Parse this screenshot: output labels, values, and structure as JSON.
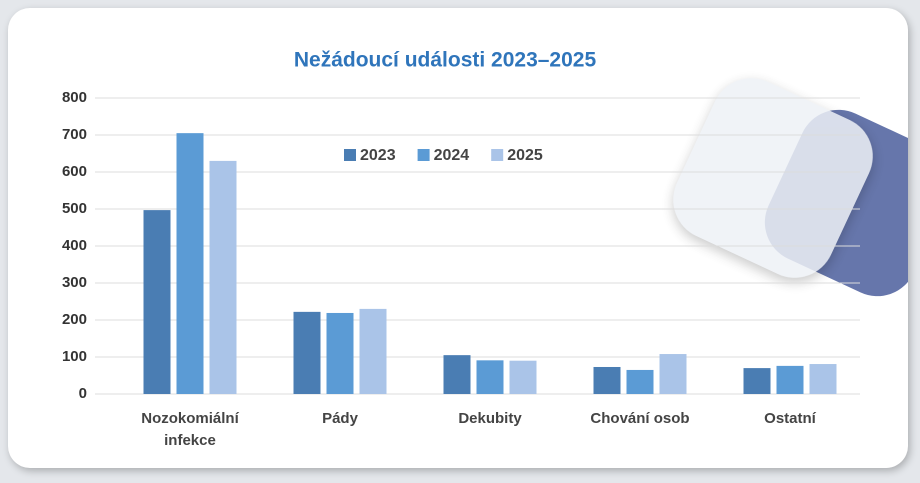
{
  "chart_data": {
    "type": "bar",
    "title": "Nežádoucí události 2023–2025",
    "categories": [
      "Nozokomiální infekce",
      "Pády",
      "Dekubity",
      "Chování osob",
      "Ostatní"
    ],
    "series": [
      {
        "name": "2023",
        "color": "#4a7db3",
        "values": [
          497,
          222,
          105,
          73,
          70
        ]
      },
      {
        "name": "2024",
        "color": "#5b9bd5",
        "values": [
          705,
          219,
          91,
          65,
          76
        ]
      },
      {
        "name": "2025",
        "color": "#aac4e8",
        "values": [
          630,
          230,
          90,
          108,
          81
        ]
      }
    ],
    "ylim": [
      0,
      800
    ],
    "yticks": [
      0,
      100,
      200,
      300,
      400,
      500,
      600,
      700,
      800
    ],
    "grid": true,
    "legend": "top"
  }
}
